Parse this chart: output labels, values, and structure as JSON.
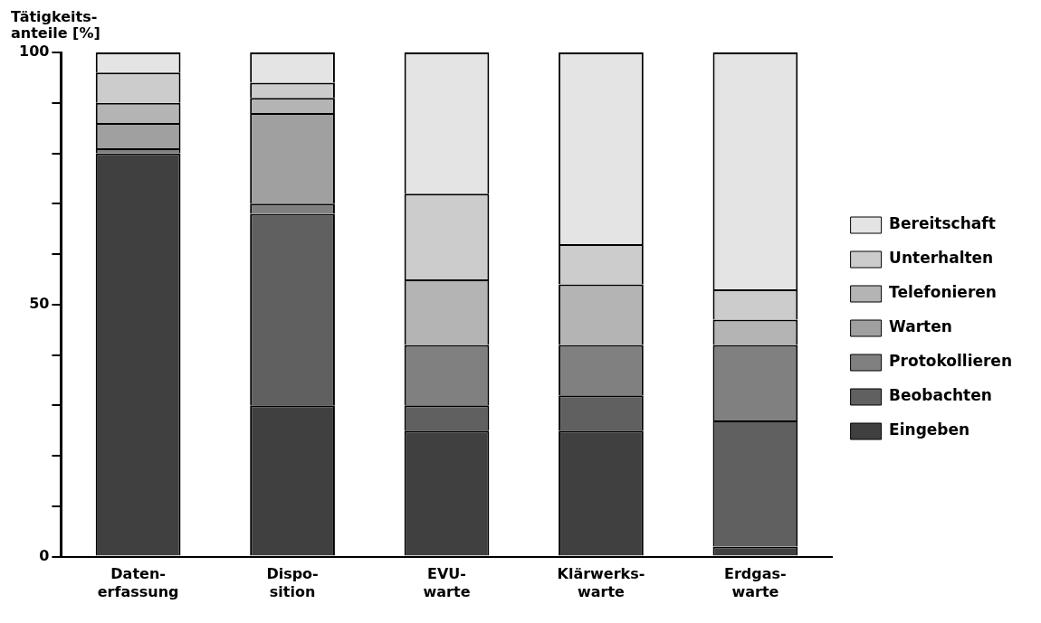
{
  "chart_data": {
    "type": "bar",
    "stacked": true,
    "ylabel": "Tätigkeits-\nanteile [%]",
    "categories": [
      "Daten-\nerfassung",
      "Dispo-\nsition",
      "EVU-\nwarte",
      "Klärwerks-\nwarte",
      "Erdgas-\nwarte"
    ],
    "series": [
      {
        "name": "Eingeben",
        "color": "#404040",
        "values": [
          80,
          30,
          25,
          25,
          2
        ]
      },
      {
        "name": "Beobachten",
        "color": "#606060",
        "values": [
          0,
          38,
          5,
          7,
          25
        ]
      },
      {
        "name": "Protokollieren",
        "color": "#808080",
        "values": [
          1,
          2,
          12,
          10,
          15
        ]
      },
      {
        "name": "Warten",
        "color": "#a0a0a0",
        "values": [
          5,
          18,
          0,
          0,
          0
        ]
      },
      {
        "name": "Telefonieren",
        "color": "#b4b4b4",
        "values": [
          4,
          3,
          13,
          12,
          5
        ]
      },
      {
        "name": "Unterhalten",
        "color": "#cccccc",
        "values": [
          6,
          3,
          17,
          8,
          6
        ]
      },
      {
        "name": "Bereitschaft",
        "color": "#e4e4e4",
        "values": [
          4,
          6,
          28,
          38,
          47
        ]
      }
    ],
    "ylim": [
      0,
      100
    ],
    "yticks": [
      0,
      {
        "value": 10,
        "label": null
      },
      {
        "value": 20,
        "label": null
      },
      {
        "value": 30,
        "label": null
      },
      {
        "value": 40,
        "label": null
      },
      50,
      {
        "value": 60,
        "label": null
      },
      {
        "value": 70,
        "label": null
      },
      {
        "value": 80,
        "label": null
      },
      {
        "value": 90,
        "label": null
      },
      100
    ],
    "grid": false,
    "legend": "right"
  }
}
